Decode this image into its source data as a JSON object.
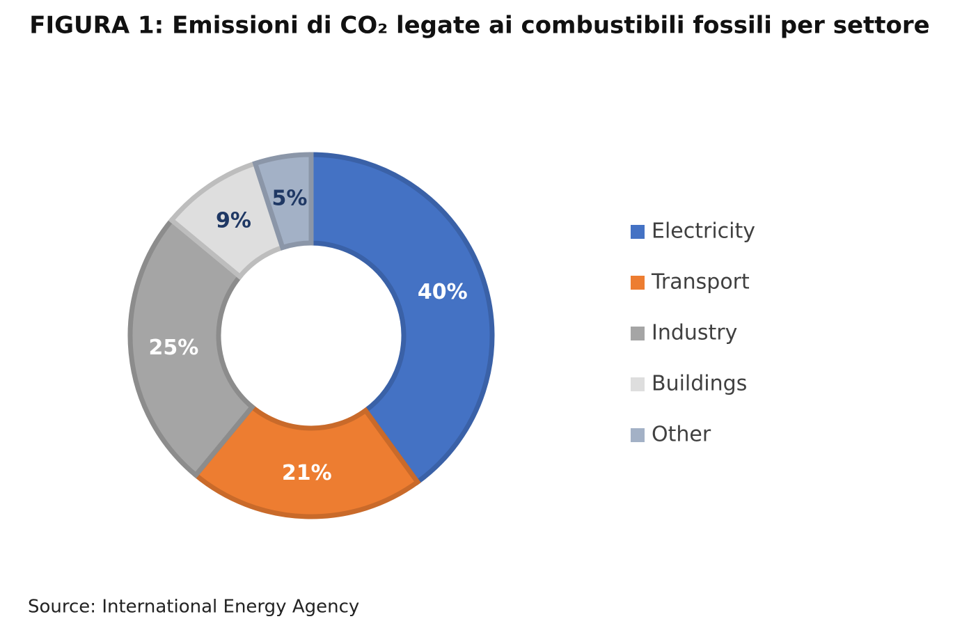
{
  "chart_data": {
    "type": "donut",
    "title": "FIGURA 1: Emissioni di CO₂ legate ai combustibili fossili per settore",
    "categories": [
      "Electricity",
      "Transport",
      "Industry",
      "Buildings",
      "Other"
    ],
    "values": [
      40,
      21,
      25,
      9,
      5
    ],
    "value_labels": [
      "40%",
      "21%",
      "25%",
      "9%",
      "5%"
    ],
    "colors": [
      "#4472c4",
      "#ed7d31",
      "#a5a5a5",
      "#dedede",
      "#a3b1c6"
    ],
    "source": "Source: International Energy Agency"
  }
}
